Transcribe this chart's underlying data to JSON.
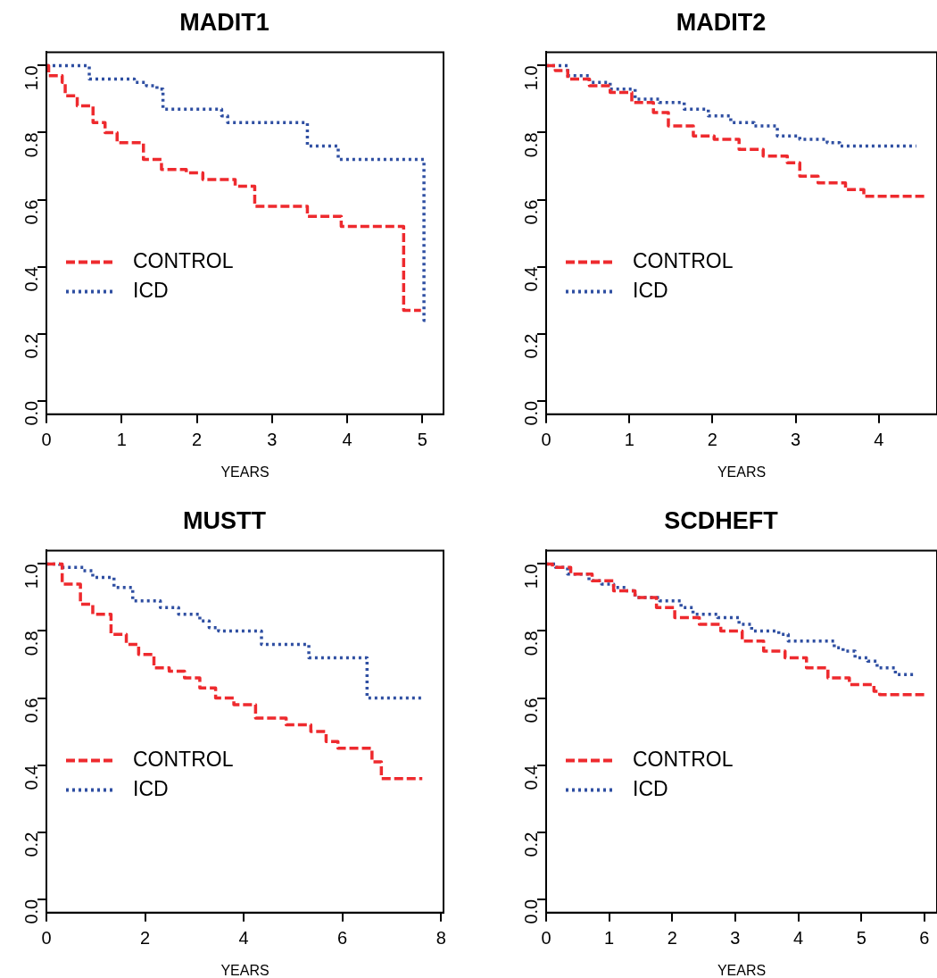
{
  "chart_data": [
    {
      "type": "step",
      "title": "MADIT1",
      "xlabel": "YEARS",
      "xlim": [
        0,
        5.28
      ],
      "xticks": [
        0,
        1,
        2,
        3,
        4,
        5
      ],
      "ylim": [
        -0.04,
        1.04
      ],
      "yticks": [
        {
          "value": 0,
          "label": "0.0"
        },
        {
          "value": 0.2,
          "label": "0.2"
        },
        {
          "value": 0.4,
          "label": "0.4"
        },
        {
          "value": 0.6,
          "label": "0.6"
        },
        {
          "value": 0.8,
          "label": "0.8"
        },
        {
          "value": 1,
          "label": "1.0"
        }
      ],
      "legend": "left",
      "grid": false,
      "series": [
        {
          "name": "CONTROL",
          "color": "#ee2a2e",
          "line_style": "dashed",
          "x": [
            0,
            0.03,
            0.21,
            0.25,
            0.41,
            0.62,
            0.78,
            0.94,
            1.29,
            1.53,
            1.86,
            2.08,
            2.51,
            2.77,
            3.47,
            3.92,
            4.75,
            4.98
          ],
          "values": [
            1,
            0.97,
            0.95,
            0.91,
            0.88,
            0.83,
            0.8,
            0.77,
            0.72,
            0.69,
            0.68,
            0.66,
            0.64,
            0.58,
            0.55,
            0.52,
            0.27,
            0.27
          ]
        },
        {
          "name": "ICD",
          "color": "#2f4fa2",
          "line_style": "dotted",
          "x": [
            0,
            0.57,
            1.17,
            1.33,
            1.47,
            1.55,
            2.33,
            2.41,
            3.47,
            3.88,
            5.02,
            5.08
          ],
          "values": [
            1,
            0.96,
            0.95,
            0.94,
            0.93,
            0.87,
            0.85,
            0.83,
            0.76,
            0.72,
            0.24,
            0.24
          ]
        }
      ]
    },
    {
      "type": "step",
      "title": "MADIT2",
      "xlabel": "YEARS",
      "xlim": [
        0,
        4.7
      ],
      "xticks": [
        0,
        1,
        2,
        3,
        4
      ],
      "ylim": [
        -0.04,
        1.04
      ],
      "yticks": [
        {
          "value": 0,
          "label": "0.0"
        },
        {
          "value": 0.2,
          "label": "0.2"
        },
        {
          "value": 0.4,
          "label": "0.4"
        },
        {
          "value": 0.6,
          "label": "0.6"
        },
        {
          "value": 0.8,
          "label": "0.8"
        },
        {
          "value": 1,
          "label": "1.0"
        }
      ],
      "legend": "left",
      "grid": false,
      "series": [
        {
          "name": "CONTROL",
          "color": "#ee2a2e",
          "line_style": "dashed",
          "x": [
            0,
            0.11,
            0.26,
            0.52,
            0.77,
            1.03,
            1.29,
            1.47,
            1.77,
            2.02,
            2.32,
            2.61,
            2.9,
            3.05,
            3.27,
            3.6,
            3.82,
            4.56
          ],
          "values": [
            1,
            0.985,
            0.96,
            0.94,
            0.92,
            0.89,
            0.86,
            0.82,
            0.79,
            0.78,
            0.75,
            0.73,
            0.71,
            0.67,
            0.65,
            0.63,
            0.61,
            0.61
          ]
        },
        {
          "name": "ICD",
          "color": "#2f4fa2",
          "line_style": "dotted",
          "x": [
            0,
            0.26,
            0.52,
            0.77,
            1.07,
            1.36,
            1.66,
            1.95,
            2.22,
            2.5,
            2.78,
            3.05,
            3.38,
            3.53,
            4.45
          ],
          "values": [
            1,
            0.97,
            0.95,
            0.93,
            0.9,
            0.89,
            0.87,
            0.85,
            0.83,
            0.82,
            0.79,
            0.78,
            0.77,
            0.76,
            0.76
          ]
        }
      ]
    },
    {
      "type": "step",
      "title": "MUSTT",
      "xlabel": "YEARS",
      "xlim": [
        0,
        8.05
      ],
      "xticks": [
        0,
        2,
        4,
        6,
        8
      ],
      "ylim": [
        -0.04,
        1.04
      ],
      "yticks": [
        {
          "value": 0,
          "label": "0.0"
        },
        {
          "value": 0.2,
          "label": "0.2"
        },
        {
          "value": 0.4,
          "label": "0.4"
        },
        {
          "value": 0.6,
          "label": "0.6"
        },
        {
          "value": 0.8,
          "label": "0.8"
        },
        {
          "value": 1,
          "label": "1.0"
        }
      ],
      "legend": "left",
      "grid": false,
      "series": [
        {
          "name": "CONTROL",
          "color": "#ee2a2e",
          "line_style": "dashed",
          "x": [
            0,
            0.32,
            0.69,
            0.94,
            1.31,
            1.62,
            1.87,
            2.18,
            2.49,
            2.8,
            3.11,
            3.43,
            3.8,
            4.24,
            4.86,
            5.36,
            5.67,
            5.91,
            6.6,
            6.79,
            7.62
          ],
          "values": [
            1,
            0.94,
            0.88,
            0.85,
            0.79,
            0.76,
            0.73,
            0.69,
            0.68,
            0.66,
            0.63,
            0.6,
            0.58,
            0.54,
            0.52,
            0.5,
            0.47,
            0.45,
            0.41,
            0.36,
            0.36
          ]
        },
        {
          "name": "ICD",
          "color": "#2f4fa2",
          "line_style": "dotted",
          "x": [
            0,
            0.27,
            0.75,
            0.94,
            1.37,
            1.75,
            2.31,
            2.68,
            3.11,
            3.3,
            3.49,
            4.36,
            5.32,
            6.5,
            7.65
          ],
          "values": [
            1,
            0.99,
            0.98,
            0.96,
            0.93,
            0.89,
            0.87,
            0.85,
            0.83,
            0.81,
            0.8,
            0.76,
            0.72,
            0.6,
            0.6
          ]
        }
      ]
    },
    {
      "type": "step",
      "title": "SCDHEFT",
      "xlabel": "YEARS",
      "xlim": [
        0,
        6.2
      ],
      "xticks": [
        0,
        1,
        2,
        3,
        4,
        5,
        6
      ],
      "ylim": [
        -0.04,
        1.04
      ],
      "yticks": [
        {
          "value": 0,
          "label": "0.0"
        },
        {
          "value": 0.2,
          "label": "0.2"
        },
        {
          "value": 0.4,
          "label": "0.4"
        },
        {
          "value": 0.6,
          "label": "0.6"
        },
        {
          "value": 0.8,
          "label": "0.8"
        },
        {
          "value": 1,
          "label": "1.0"
        }
      ],
      "legend": "left",
      "grid": false,
      "series": [
        {
          "name": "CONTROL",
          "color": "#ee2a2e",
          "line_style": "dashed",
          "x": [
            0,
            0.1,
            0.39,
            0.73,
            1.07,
            1.41,
            1.75,
            2.04,
            2.43,
            2.77,
            3.11,
            3.45,
            3.79,
            4.13,
            4.47,
            4.81,
            5.2,
            5.29,
            6.02
          ],
          "values": [
            1,
            0.99,
            0.97,
            0.95,
            0.92,
            0.9,
            0.87,
            0.84,
            0.82,
            0.8,
            0.77,
            0.74,
            0.72,
            0.69,
            0.66,
            0.64,
            0.62,
            0.61,
            0.61
          ]
        },
        {
          "name": "ICD",
          "color": "#2f4fa2",
          "line_style": "dotted",
          "x": [
            0,
            0.15,
            0.34,
            0.68,
            0.88,
            1.07,
            1.27,
            1.41,
            1.8,
            2.14,
            2.33,
            2.72,
            3.06,
            3.26,
            3.69,
            3.84,
            4.03,
            4.57,
            4.71,
            4.9,
            5.1,
            5.25,
            5.54,
            5.85
          ],
          "values": [
            1,
            0.99,
            0.97,
            0.95,
            0.94,
            0.93,
            0.92,
            0.9,
            0.89,
            0.87,
            0.85,
            0.84,
            0.82,
            0.8,
            0.79,
            0.77,
            0.77,
            0.75,
            0.74,
            0.72,
            0.71,
            0.69,
            0.67,
            0.67
          ]
        }
      ]
    }
  ]
}
